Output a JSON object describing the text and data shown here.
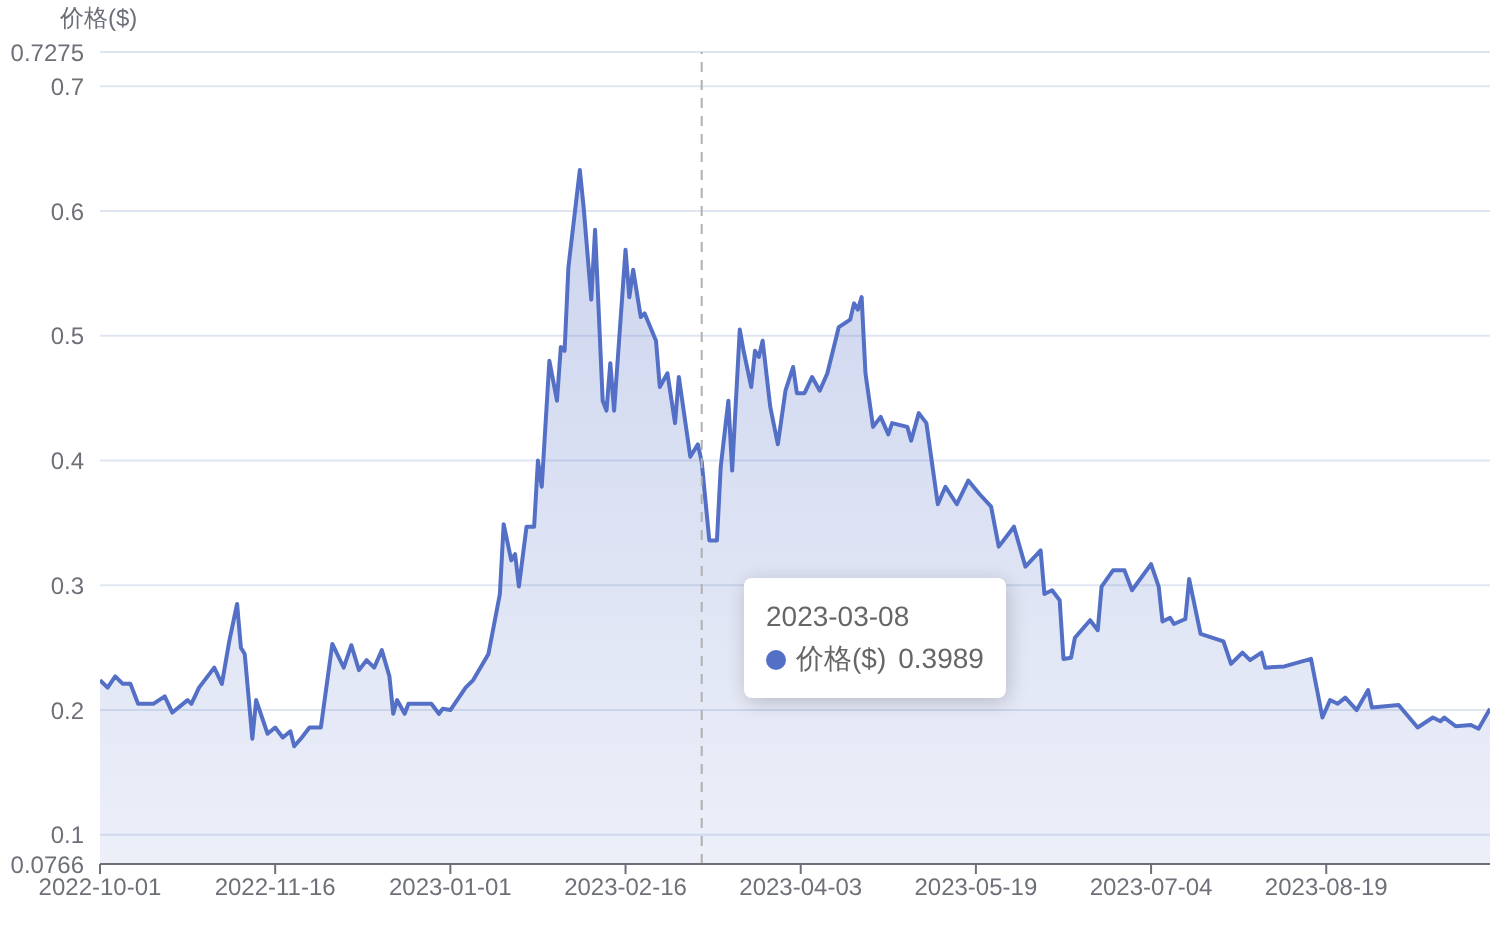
{
  "chart_data": {
    "type": "area",
    "ylabel": "价格($)",
    "x": [
      "2022-10-01",
      "2022-10-03",
      "2022-10-05",
      "2022-10-07",
      "2022-10-09",
      "2022-10-11",
      "2022-10-15",
      "2022-10-18",
      "2022-10-20",
      "2022-10-24",
      "2022-10-25",
      "2022-10-27",
      "2022-10-31",
      "2022-11-02",
      "2022-11-04",
      "2022-11-06",
      "2022-11-07",
      "2022-11-08",
      "2022-11-10",
      "2022-11-11",
      "2022-11-14",
      "2022-11-16",
      "2022-11-18",
      "2022-11-20",
      "2022-11-21",
      "2022-11-23",
      "2022-11-25",
      "2022-11-28",
      "2022-12-01",
      "2022-12-04",
      "2022-12-06",
      "2022-12-08",
      "2022-12-10",
      "2022-12-12",
      "2022-12-14",
      "2022-12-16",
      "2022-12-17",
      "2022-12-18",
      "2022-12-20",
      "2022-12-21",
      "2022-12-27",
      "2022-12-29",
      "2022-12-30",
      "2023-01-01",
      "2023-01-05",
      "2023-01-07",
      "2023-01-11",
      "2023-01-14",
      "2023-01-15",
      "2023-01-17",
      "2023-01-18",
      "2023-01-19",
      "2023-01-21",
      "2023-01-23",
      "2023-01-24",
      "2023-01-25",
      "2023-01-27",
      "2023-01-29",
      "2023-01-30",
      "2023-01-31",
      "2023-02-01",
      "2023-02-04",
      "2023-02-05",
      "2023-02-07",
      "2023-02-08",
      "2023-02-10",
      "2023-02-11",
      "2023-02-12",
      "2023-02-13",
      "2023-02-16",
      "2023-02-17",
      "2023-02-18",
      "2023-02-20",
      "2023-02-21",
      "2023-02-24",
      "2023-02-25",
      "2023-02-27",
      "2023-03-01",
      "2023-03-02",
      "2023-03-05",
      "2023-03-07",
      "2023-03-08",
      "2023-03-10",
      "2023-03-12",
      "2023-03-13",
      "2023-03-15",
      "2023-03-16",
      "2023-03-18",
      "2023-03-19",
      "2023-03-21",
      "2023-03-22",
      "2023-03-23",
      "2023-03-24",
      "2023-03-26",
      "2023-03-28",
      "2023-03-30",
      "2023-04-01",
      "2023-04-02",
      "2023-04-04",
      "2023-04-06",
      "2023-04-08",
      "2023-04-10",
      "2023-04-13",
      "2023-04-16",
      "2023-04-17",
      "2023-04-18",
      "2023-04-19",
      "2023-04-20",
      "2023-04-22",
      "2023-04-24",
      "2023-04-26",
      "2023-04-27",
      "2023-05-01",
      "2023-05-02",
      "2023-05-04",
      "2023-05-06",
      "2023-05-09",
      "2023-05-11",
      "2023-05-14",
      "2023-05-17",
      "2023-05-20",
      "2023-05-23",
      "2023-05-25",
      "2023-05-29",
      "2023-06-01",
      "2023-06-05",
      "2023-06-06",
      "2023-06-08",
      "2023-06-10",
      "2023-06-11",
      "2023-06-13",
      "2023-06-14",
      "2023-06-18",
      "2023-06-20",
      "2023-06-21",
      "2023-06-24",
      "2023-06-27",
      "2023-06-29",
      "2023-07-04",
      "2023-07-06",
      "2023-07-07",
      "2023-07-09",
      "2023-07-10",
      "2023-07-13",
      "2023-07-14",
      "2023-07-17",
      "2023-07-20",
      "2023-07-23",
      "2023-07-25",
      "2023-07-28",
      "2023-07-30",
      "2023-08-02",
      "2023-08-03",
      "2023-08-08",
      "2023-08-15",
      "2023-08-18",
      "2023-08-20",
      "2023-08-22",
      "2023-08-24",
      "2023-08-27",
      "2023-08-30",
      "2023-08-31",
      "2023-09-07",
      "2023-09-12",
      "2023-09-16",
      "2023-09-18",
      "2023-09-19",
      "2023-09-22",
      "2023-09-26",
      "2023-09-28",
      "2023-10-01"
    ],
    "series": [
      {
        "name": "价格($)",
        "color": "#5470c6",
        "values": [
          0.224,
          0.218,
          0.227,
          0.221,
          0.221,
          0.205,
          0.205,
          0.211,
          0.198,
          0.208,
          0.205,
          0.218,
          0.234,
          0.221,
          0.256,
          0.285,
          0.25,
          0.245,
          0.177,
          0.208,
          0.181,
          0.186,
          0.178,
          0.183,
          0.171,
          0.178,
          0.186,
          0.186,
          0.253,
          0.234,
          0.252,
          0.232,
          0.24,
          0.234,
          0.248,
          0.227,
          0.197,
          0.208,
          0.197,
          0.205,
          0.205,
          0.197,
          0.201,
          0.2,
          0.218,
          0.224,
          0.245,
          0.293,
          0.349,
          0.32,
          0.325,
          0.299,
          0.347,
          0.347,
          0.4,
          0.379,
          0.48,
          0.448,
          0.491,
          0.488,
          0.555,
          0.633,
          0.603,
          0.529,
          0.585,
          0.448,
          0.44,
          0.478,
          0.44,
          0.569,
          0.531,
          0.553,
          0.515,
          0.518,
          0.496,
          0.459,
          0.47,
          0.43,
          0.467,
          0.403,
          0.413,
          0.399,
          0.336,
          0.336,
          0.395,
          0.448,
          0.392,
          0.505,
          0.488,
          0.459,
          0.488,
          0.483,
          0.496,
          0.443,
          0.413,
          0.456,
          0.475,
          0.454,
          0.454,
          0.467,
          0.456,
          0.47,
          0.507,
          0.513,
          0.526,
          0.521,
          0.531,
          0.47,
          0.427,
          0.435,
          0.421,
          0.43,
          0.427,
          0.416,
          0.438,
          0.43,
          0.365,
          0.379,
          0.365,
          0.384,
          0.373,
          0.363,
          0.331,
          0.347,
          0.315,
          0.328,
          0.293,
          0.296,
          0.288,
          0.241,
          0.242,
          0.258,
          0.272,
          0.264,
          0.299,
          0.312,
          0.312,
          0.296,
          0.317,
          0.299,
          0.271,
          0.274,
          0.269,
          0.273,
          0.305,
          0.261,
          0.258,
          0.255,
          0.237,
          0.246,
          0.24,
          0.246,
          0.234,
          0.235,
          0.241,
          0.194,
          0.208,
          0.205,
          0.21,
          0.2,
          0.216,
          0.202,
          0.204,
          0.186,
          0.194,
          0.191,
          0.194,
          0.187,
          0.188,
          0.185,
          0.201
        ]
      }
    ],
    "xlim": [
      "2022-10-01",
      "2023-10-01"
    ],
    "xticks": [
      "2022-10-01",
      "2022-11-16",
      "2023-01-01",
      "2023-02-16",
      "2023-04-03",
      "2023-05-19",
      "2023-07-04",
      "2023-08-19"
    ],
    "ylim": [
      0.0766,
      0.7275
    ],
    "yticks": [
      0.0766,
      0.1,
      0.2,
      0.3,
      0.4,
      0.5,
      0.6,
      0.7,
      0.7275
    ],
    "grid": "y",
    "legend": "bottom",
    "marker": "none",
    "line_style": "solid",
    "ref_lines": [
      {
        "axis": "x",
        "value": "2023-03-08",
        "label": null,
        "color": "#b0b0b0",
        "line_style": "dashed"
      }
    ],
    "annotations": [
      "2023-03-08",
      "0.3989"
    ]
  }
}
